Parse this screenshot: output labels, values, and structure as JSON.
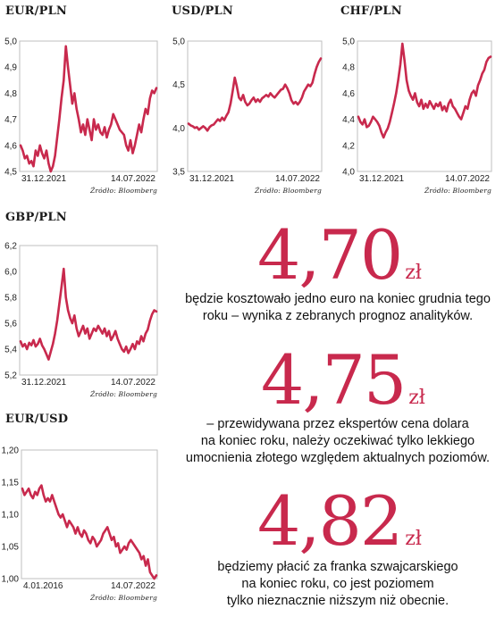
{
  "color_line": "#c8294d",
  "color_frame": "#bfbfbf",
  "source_label": "Źródło: Bloomberg",
  "chart_data": [
    {
      "type": "line",
      "title": "EUR/PLN",
      "ylim": [
        4.5,
        5.0
      ],
      "yticks": [
        "5,0",
        "4,9",
        "4,8",
        "4,7",
        "4,6",
        "4,5"
      ],
      "xtick_labels": [
        "31.12.2021",
        "14.07.2022"
      ],
      "source": "Źródło: Bloomberg",
      "values": [
        4.6,
        4.58,
        4.55,
        4.56,
        4.53,
        4.54,
        4.52,
        4.58,
        4.56,
        4.6,
        4.57,
        4.55,
        4.58,
        4.53,
        4.5,
        4.52,
        4.56,
        4.63,
        4.7,
        4.78,
        4.85,
        4.98,
        4.9,
        4.83,
        4.76,
        4.8,
        4.74,
        4.7,
        4.65,
        4.68,
        4.64,
        4.7,
        4.66,
        4.62,
        4.7,
        4.66,
        4.68,
        4.65,
        4.64,
        4.67,
        4.63,
        4.66,
        4.68,
        4.72,
        4.7,
        4.68,
        4.66,
        4.65,
        4.64,
        4.6,
        4.58,
        4.62,
        4.57,
        4.6,
        4.64,
        4.68,
        4.65,
        4.7,
        4.74,
        4.72,
        4.78,
        4.81,
        4.8,
        4.82
      ]
    },
    {
      "type": "line",
      "title": "USD/PLN",
      "ylim": [
        3.5,
        5.0
      ],
      "yticks": [
        "5,0",
        "4,5",
        "4,0",
        "3,5"
      ],
      "xtick_labels": [
        "31.12.2021",
        "14.07.2022"
      ],
      "source": "Źródło: Bloomberg",
      "values": [
        4.05,
        4.03,
        4.02,
        4.0,
        4.01,
        3.98,
        4.0,
        4.02,
        4.0,
        3.97,
        4.01,
        4.03,
        4.04,
        4.07,
        4.1,
        4.08,
        4.12,
        4.09,
        4.14,
        4.18,
        4.28,
        4.42,
        4.58,
        4.48,
        4.35,
        4.32,
        4.38,
        4.3,
        4.26,
        4.28,
        4.32,
        4.35,
        4.3,
        4.33,
        4.3,
        4.34,
        4.36,
        4.38,
        4.36,
        4.4,
        4.37,
        4.35,
        4.38,
        4.41,
        4.44,
        4.45,
        4.5,
        4.46,
        4.4,
        4.32,
        4.28,
        4.3,
        4.27,
        4.3,
        4.35,
        4.42,
        4.46,
        4.5,
        4.48,
        4.52,
        4.62,
        4.7,
        4.76,
        4.8
      ]
    },
    {
      "type": "line",
      "title": "CHF/PLN",
      "ylim": [
        4.0,
        5.0
      ],
      "yticks": [
        "5,0",
        "4,8",
        "4,6",
        "4,4",
        "4,2",
        "4,0"
      ],
      "xtick_labels": [
        "31.12.2021",
        "14.07.2022"
      ],
      "source": "Źródło: Bloomberg",
      "values": [
        4.42,
        4.38,
        4.36,
        4.4,
        4.34,
        4.35,
        4.38,
        4.42,
        4.4,
        4.38,
        4.35,
        4.3,
        4.26,
        4.3,
        4.33,
        4.38,
        4.45,
        4.52,
        4.6,
        4.7,
        4.82,
        4.98,
        4.85,
        4.7,
        4.62,
        4.58,
        4.55,
        4.6,
        4.53,
        4.5,
        4.55,
        4.48,
        4.52,
        4.49,
        4.54,
        4.51,
        4.48,
        4.52,
        4.5,
        4.53,
        4.47,
        4.5,
        4.46,
        4.52,
        4.55,
        4.5,
        4.48,
        4.45,
        4.42,
        4.4,
        4.45,
        4.5,
        4.48,
        4.55,
        4.6,
        4.62,
        4.58,
        4.66,
        4.7,
        4.75,
        4.78,
        4.84,
        4.87,
        4.88
      ]
    },
    {
      "type": "line",
      "title": "GBP/PLN",
      "ylim": [
        5.2,
        6.2
      ],
      "yticks": [
        "6,2",
        "6,0",
        "5,8",
        "5,6",
        "5,4",
        "5,2"
      ],
      "xtick_labels": [
        "31.12.2021",
        "14.07.2022"
      ],
      "source": "Źródło: Bloomberg",
      "values": [
        5.46,
        5.42,
        5.44,
        5.4,
        5.45,
        5.43,
        5.47,
        5.42,
        5.44,
        5.48,
        5.43,
        5.4,
        5.36,
        5.32,
        5.38,
        5.44,
        5.52,
        5.62,
        5.75,
        5.88,
        6.02,
        5.8,
        5.7,
        5.64,
        5.6,
        5.66,
        5.56,
        5.5,
        5.54,
        5.58,
        5.52,
        5.56,
        5.48,
        5.52,
        5.56,
        5.54,
        5.58,
        5.55,
        5.52,
        5.56,
        5.5,
        5.54,
        5.47,
        5.5,
        5.54,
        5.48,
        5.44,
        5.4,
        5.38,
        5.42,
        5.37,
        5.4,
        5.44,
        5.4,
        5.46,
        5.44,
        5.5,
        5.46,
        5.52,
        5.55,
        5.62,
        5.67,
        5.7,
        5.69
      ]
    },
    {
      "type": "line",
      "title": "EUR/USD",
      "ylim": [
        1.0,
        1.2
      ],
      "yticks": [
        "1,20",
        "1,15",
        "1,10",
        "1,05",
        "1,00"
      ],
      "xtick_labels": [
        "4.01.2016",
        "14.07.2022"
      ],
      "source": "Źródło: Bloomberg",
      "values": [
        1.14,
        1.13,
        1.135,
        1.14,
        1.13,
        1.125,
        1.135,
        1.13,
        1.14,
        1.145,
        1.13,
        1.12,
        1.125,
        1.12,
        1.13,
        1.12,
        1.11,
        1.1,
        1.095,
        1.1,
        1.09,
        1.08,
        1.09,
        1.085,
        1.08,
        1.07,
        1.08,
        1.07,
        1.065,
        1.075,
        1.07,
        1.06,
        1.055,
        1.065,
        1.06,
        1.05,
        1.055,
        1.06,
        1.07,
        1.075,
        1.08,
        1.07,
        1.06,
        1.065,
        1.05,
        1.055,
        1.04,
        1.045,
        1.05,
        1.045,
        1.055,
        1.06,
        1.055,
        1.05,
        1.045,
        1.04,
        1.03,
        1.035,
        1.02,
        1.03,
        1.01,
        1.005,
        1.0,
        1.005
      ]
    }
  ],
  "callouts": [
    {
      "value": "4,70",
      "unit": "zł",
      "text_lines": [
        "będzie kosztowało jedno euro na koniec grudnia tego",
        "roku – wynika z zebranych prognoz analityków."
      ]
    },
    {
      "value": "4,75",
      "unit": "zł",
      "text_lines": [
        "– przewidywana przez ekspertów cena dolara",
        "na koniec roku, należy oczekiwać tylko lekkiego",
        "umocnienia złotego względem aktualnych poziomów."
      ]
    },
    {
      "value": "4,82",
      "unit": "zł",
      "text_lines": [
        "będziemy płacić za franka szwajcarskiego",
        "na koniec roku, co jest poziomem",
        "tylko nieznacznie niższym niż obecnie."
      ]
    }
  ]
}
